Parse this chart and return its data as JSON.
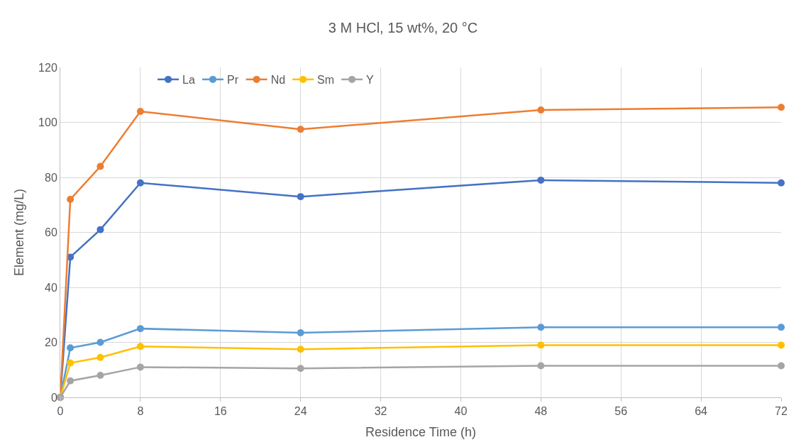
{
  "chart_data": {
    "type": "line",
    "title": "3 M HCl, 15 wt%, 20 °C",
    "xlabel": "Residence Time (h)",
    "ylabel": "Element (mg/L)",
    "x": [
      0,
      1,
      4,
      8,
      24,
      48,
      72
    ],
    "series": [
      {
        "name": "La",
        "color": "#4472c4",
        "values": [
          0,
          51,
          61,
          78,
          73,
          79,
          78
        ]
      },
      {
        "name": "Pr",
        "color": "#5b9bd5",
        "values": [
          0,
          18,
          20,
          25,
          23.5,
          25.5,
          25.5
        ]
      },
      {
        "name": "Nd",
        "color": "#ed7d31",
        "values": [
          0,
          72,
          84,
          104,
          97.5,
          104.5,
          105.5
        ]
      },
      {
        "name": "Sm",
        "color": "#ffc000",
        "values": [
          0,
          12.5,
          14.5,
          18.5,
          17.5,
          19,
          19
        ]
      },
      {
        "name": "Y",
        "color": "#a5a5a5",
        "values": [
          0,
          6,
          8,
          11,
          10.5,
          11.5,
          11.5
        ]
      }
    ],
    "xlim": [
      0,
      72
    ],
    "xticks": [
      0,
      8,
      16,
      24,
      32,
      40,
      48,
      56,
      64,
      72
    ],
    "ylim": [
      0,
      120
    ],
    "yticks": [
      0,
      20,
      40,
      60,
      80,
      100,
      120
    ],
    "grid": true,
    "legend": "top left",
    "marker": "circle",
    "line_style": "solid"
  }
}
